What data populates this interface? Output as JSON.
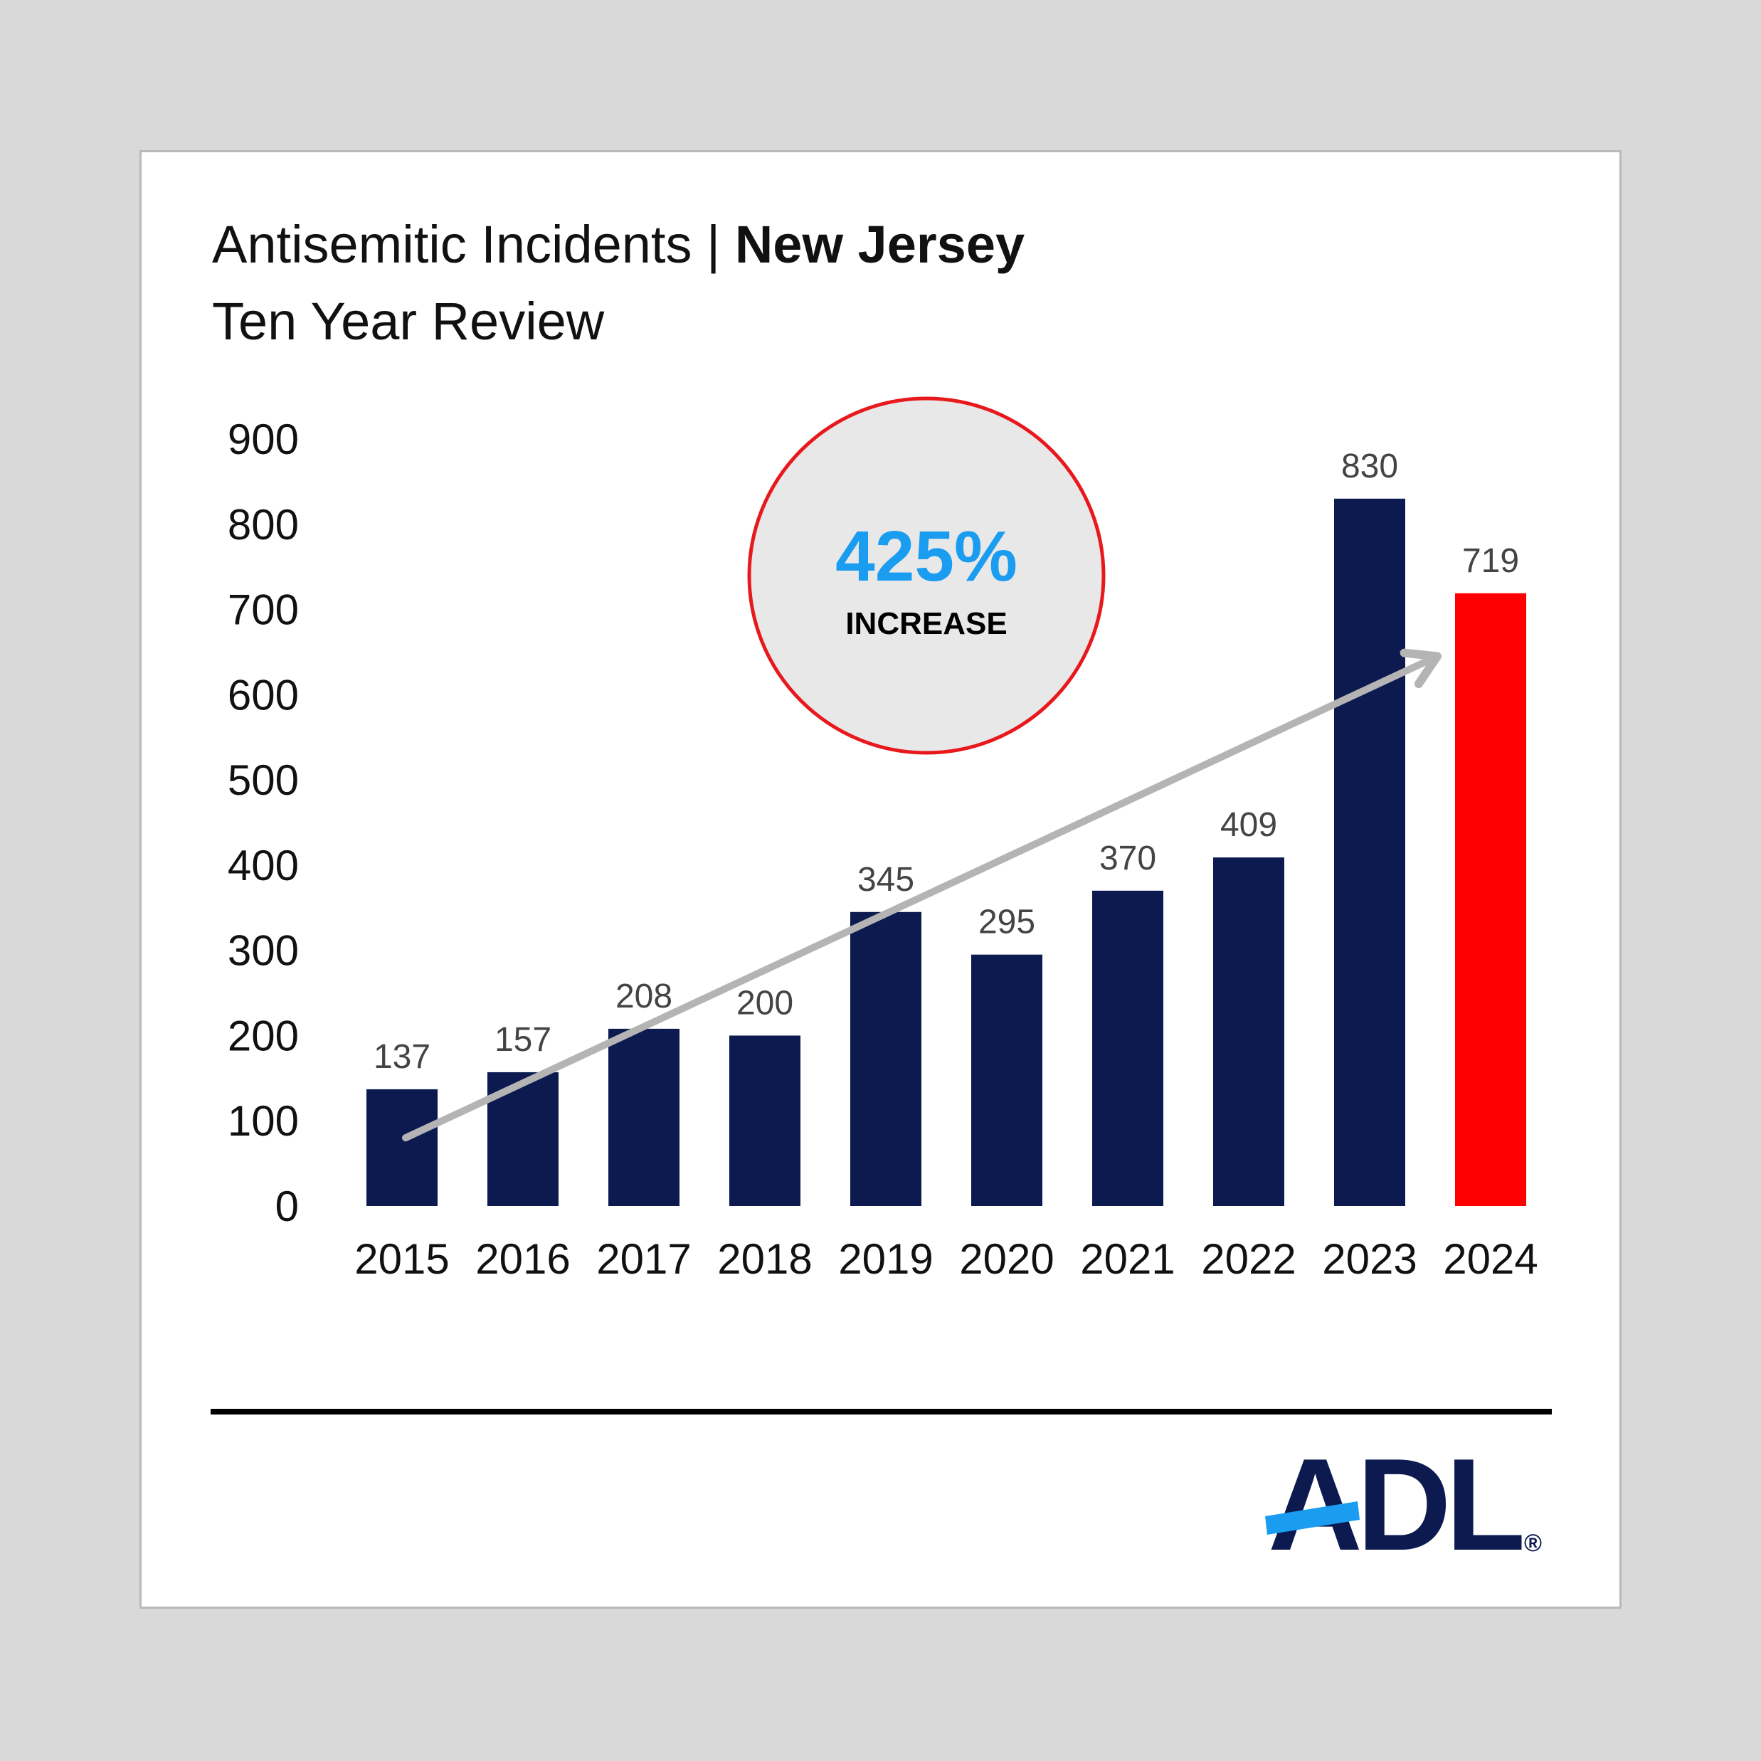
{
  "header": {
    "title_prefix": "Antisemitic Incidents |",
    "title_bold": "New Jersey",
    "subtitle": "Ten Year Review"
  },
  "callout": {
    "value": "425%",
    "label": "INCREASE",
    "value_color": "#1a9cf0",
    "ring_color": "#e8191c",
    "fill_color": "#e8e8e8"
  },
  "logo": {
    "text": "ADL",
    "mark": "®",
    "color": "#0c1a4f",
    "accent_color": "#1a9cf0"
  },
  "colors": {
    "bar": "#0c1a4f",
    "highlight_bar": "#ff0000",
    "trend_arrow": "#b4b4b4",
    "label": "#444444"
  },
  "chart_data": {
    "type": "bar",
    "categories": [
      "2015",
      "2016",
      "2017",
      "2018",
      "2019",
      "2020",
      "2021",
      "2022",
      "2023",
      "2024"
    ],
    "values": [
      137,
      157,
      208,
      200,
      345,
      295,
      370,
      409,
      830,
      719
    ],
    "data_labels": [
      "137",
      "157",
      "208",
      "200",
      "345",
      "295",
      "370",
      "409",
      "830",
      "719"
    ],
    "highlight_category": "2024",
    "y_ticks": [
      "0",
      "100",
      "200",
      "300",
      "400",
      "500",
      "600",
      "700",
      "800",
      "900"
    ],
    "ylim": [
      0,
      900
    ],
    "grid": false,
    "legend": "none",
    "trend_arrow": {
      "from": [
        "2015",
        80
      ],
      "to": [
        "2024",
        645
      ]
    }
  }
}
